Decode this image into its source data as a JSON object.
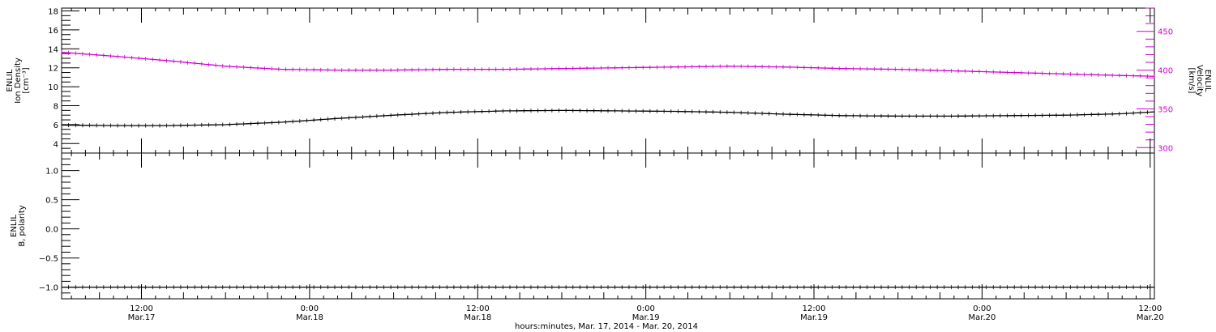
{
  "colors": {
    "density": "#000000",
    "velocity": "#d000d0",
    "axis": "#000000"
  },
  "x_axis": {
    "title": "hours:minutes, Mar. 17, 2014 - Mar. 20, 2014",
    "ticks": [
      {
        "time": "12:00",
        "date": "Mar.17",
        "hours": 12
      },
      {
        "time": "0:00",
        "date": "Mar.18",
        "hours": 24
      },
      {
        "time": "12:00",
        "date": "Mar.18",
        "hours": 36
      },
      {
        "time": "0:00",
        "date": "Mar.19",
        "hours": 48
      },
      {
        "time": "12:00",
        "date": "Mar.19",
        "hours": 60
      },
      {
        "time": "0:00",
        "date": "Mar.20",
        "hours": 72
      },
      {
        "time": "12:00",
        "date": "Mar.20",
        "hours": 84
      }
    ]
  },
  "chart_data": [
    {
      "type": "line",
      "panel": "top",
      "xlim_hours": [
        6.3,
        84.3
      ],
      "y_left": {
        "label_lines": [
          "ENLIL",
          "Ion Density",
          "[cm⁻³]"
        ],
        "range": [
          3.0,
          18.3
        ],
        "ticks": [
          4,
          6,
          8,
          10,
          12,
          14,
          16,
          18
        ]
      },
      "y_right": {
        "label_lines": [
          "ENLIL",
          "Velocity",
          "[km/s]"
        ],
        "range": [
          293,
          480
        ],
        "ticks": [
          300,
          350,
          400,
          450
        ]
      },
      "series": [
        {
          "name": "Ion Density",
          "axis": "left",
          "x_hours": [
            6.3,
            10,
            14,
            18,
            22,
            26,
            30,
            34,
            38,
            42,
            46,
            50,
            54,
            58,
            62,
            66,
            70,
            74,
            78,
            82,
            84.3
          ],
          "values": [
            5.95,
            5.9,
            5.9,
            6.0,
            6.25,
            6.65,
            7.0,
            7.3,
            7.45,
            7.5,
            7.45,
            7.4,
            7.3,
            7.1,
            6.95,
            6.9,
            6.9,
            6.95,
            7.0,
            7.15,
            7.35
          ]
        },
        {
          "name": "Velocity",
          "axis": "right",
          "x_hours": [
            6.3,
            10,
            14,
            18,
            22,
            26,
            30,
            34,
            38,
            42,
            46,
            50,
            54,
            58,
            62,
            66,
            70,
            74,
            78,
            82,
            84.3
          ],
          "values": [
            423,
            418,
            412,
            405,
            401,
            400,
            400,
            401,
            401,
            402,
            403,
            404,
            405,
            404,
            402,
            401,
            399,
            397,
            395,
            393,
            392
          ]
        }
      ]
    },
    {
      "type": "line",
      "panel": "bottom",
      "xlim_hours": [
        6.3,
        84.3
      ],
      "y_left": {
        "label_lines": [
          "ENLIL",
          "B, polarity"
        ],
        "range": [
          -1.2,
          1.3
        ],
        "ticks": [
          -1.0,
          -0.5,
          0.0,
          0.5,
          1.0
        ],
        "tick_labels": [
          "−1.0",
          "−0.5",
          "0.0",
          "0.5",
          "1.0"
        ]
      },
      "series": [
        {
          "name": "B polarity",
          "axis": "left",
          "x_hours": [
            6.3,
            84.3
          ],
          "values": [
            -1.0,
            -1.0
          ]
        }
      ]
    }
  ]
}
